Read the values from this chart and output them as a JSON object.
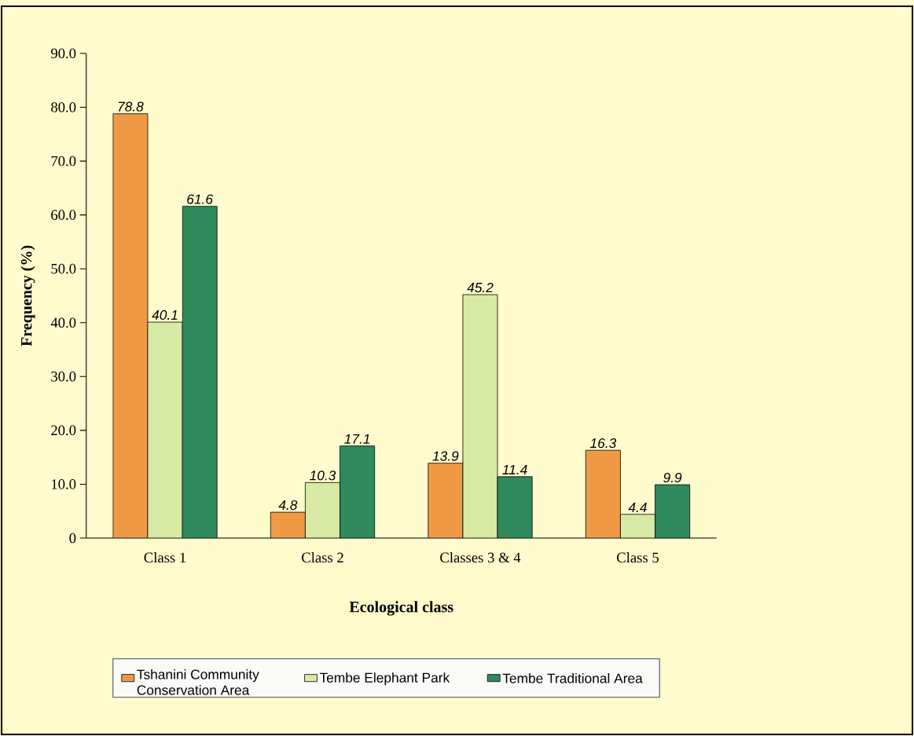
{
  "chart_data": {
    "type": "bar",
    "xlabel": "Ecological class",
    "ylabel": "Frequency (%)",
    "categories": [
      "Class 1",
      "Class 2",
      "Classes 3  & 4",
      "Class 5"
    ],
    "series": [
      {
        "name": "Tshanini Community Conservation Area",
        "color": "#f09a46",
        "values": [
          78.8,
          4.8,
          13.9,
          16.3
        ]
      },
      {
        "name": "Tembe Elephant Park",
        "color": "#d8e9a6",
        "values": [
          40.1,
          10.3,
          45.2,
          4.4
        ]
      },
      {
        "name": "Tembe Traditional Area",
        "color": "#2f8a5e",
        "values": [
          61.6,
          17.1,
          11.4,
          9.9
        ]
      }
    ],
    "ylim": [
      0,
      90
    ],
    "yticks": [
      0,
      {
        "value": 10,
        "label": "10.0"
      },
      {
        "value": 20,
        "label": "20.0"
      },
      {
        "value": 30,
        "label": "30.0"
      },
      {
        "value": 40,
        "label": "40.0"
      },
      {
        "value": 50,
        "label": "50.0"
      },
      {
        "value": 60,
        "label": "60.0"
      },
      {
        "value": 70,
        "label": "70.0"
      },
      {
        "value": 80,
        "label": "80.0"
      },
      {
        "value": 90,
        "label": "90.0"
      }
    ],
    "data_labels": true,
    "grid": false,
    "legend": "bottom"
  }
}
